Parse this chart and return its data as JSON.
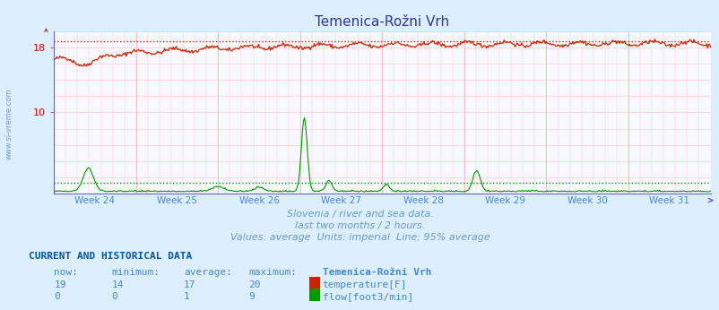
{
  "title": "Temenica-Rožni Vrh",
  "bg_color": "#ddeeff",
  "plot_bg_color": "#f8f8ff",
  "grid_h_color": "#ffcccc",
  "grid_v_color": "#ffcccc",
  "x_label_color": "#4488cc",
  "y_label_color": "#cc0000",
  "spine_color": "#6666cc",
  "subtitle_lines": [
    "Slovenia / river and sea data.",
    "last two months / 2 hours.",
    "Values: average  Units: imperial  Line: 95% average"
  ],
  "subtitle_color": "#6699cc",
  "week_labels": [
    "Week 24",
    "Week 25",
    "Week 26",
    "Week 27",
    "Week 28",
    "Week 29",
    "Week 30",
    "Week 31"
  ],
  "ylim": [
    0,
    20
  ],
  "yticks_major": [
    0,
    2,
    4,
    6,
    8,
    10,
    12,
    14,
    16,
    18,
    20
  ],
  "yticks_show": [
    10,
    18
  ],
  "temp_color": "#cc2200",
  "flow_color": "#009900",
  "temp_95pct": 18.7,
  "flow_95pct": 1.3,
  "table_header_color": "#0055aa",
  "table_col_color": "#4488cc",
  "table_data_color": "#4488cc",
  "legend_title": "Temenica-Rožni Vrh",
  "temp_now": 19,
  "temp_min": 14,
  "temp_avg": 17,
  "temp_max": 20,
  "flow_now": 0,
  "flow_min": 0,
  "flow_avg": 1,
  "flow_max": 9,
  "num_points": 672,
  "watermark": "www.si-vreme.com"
}
